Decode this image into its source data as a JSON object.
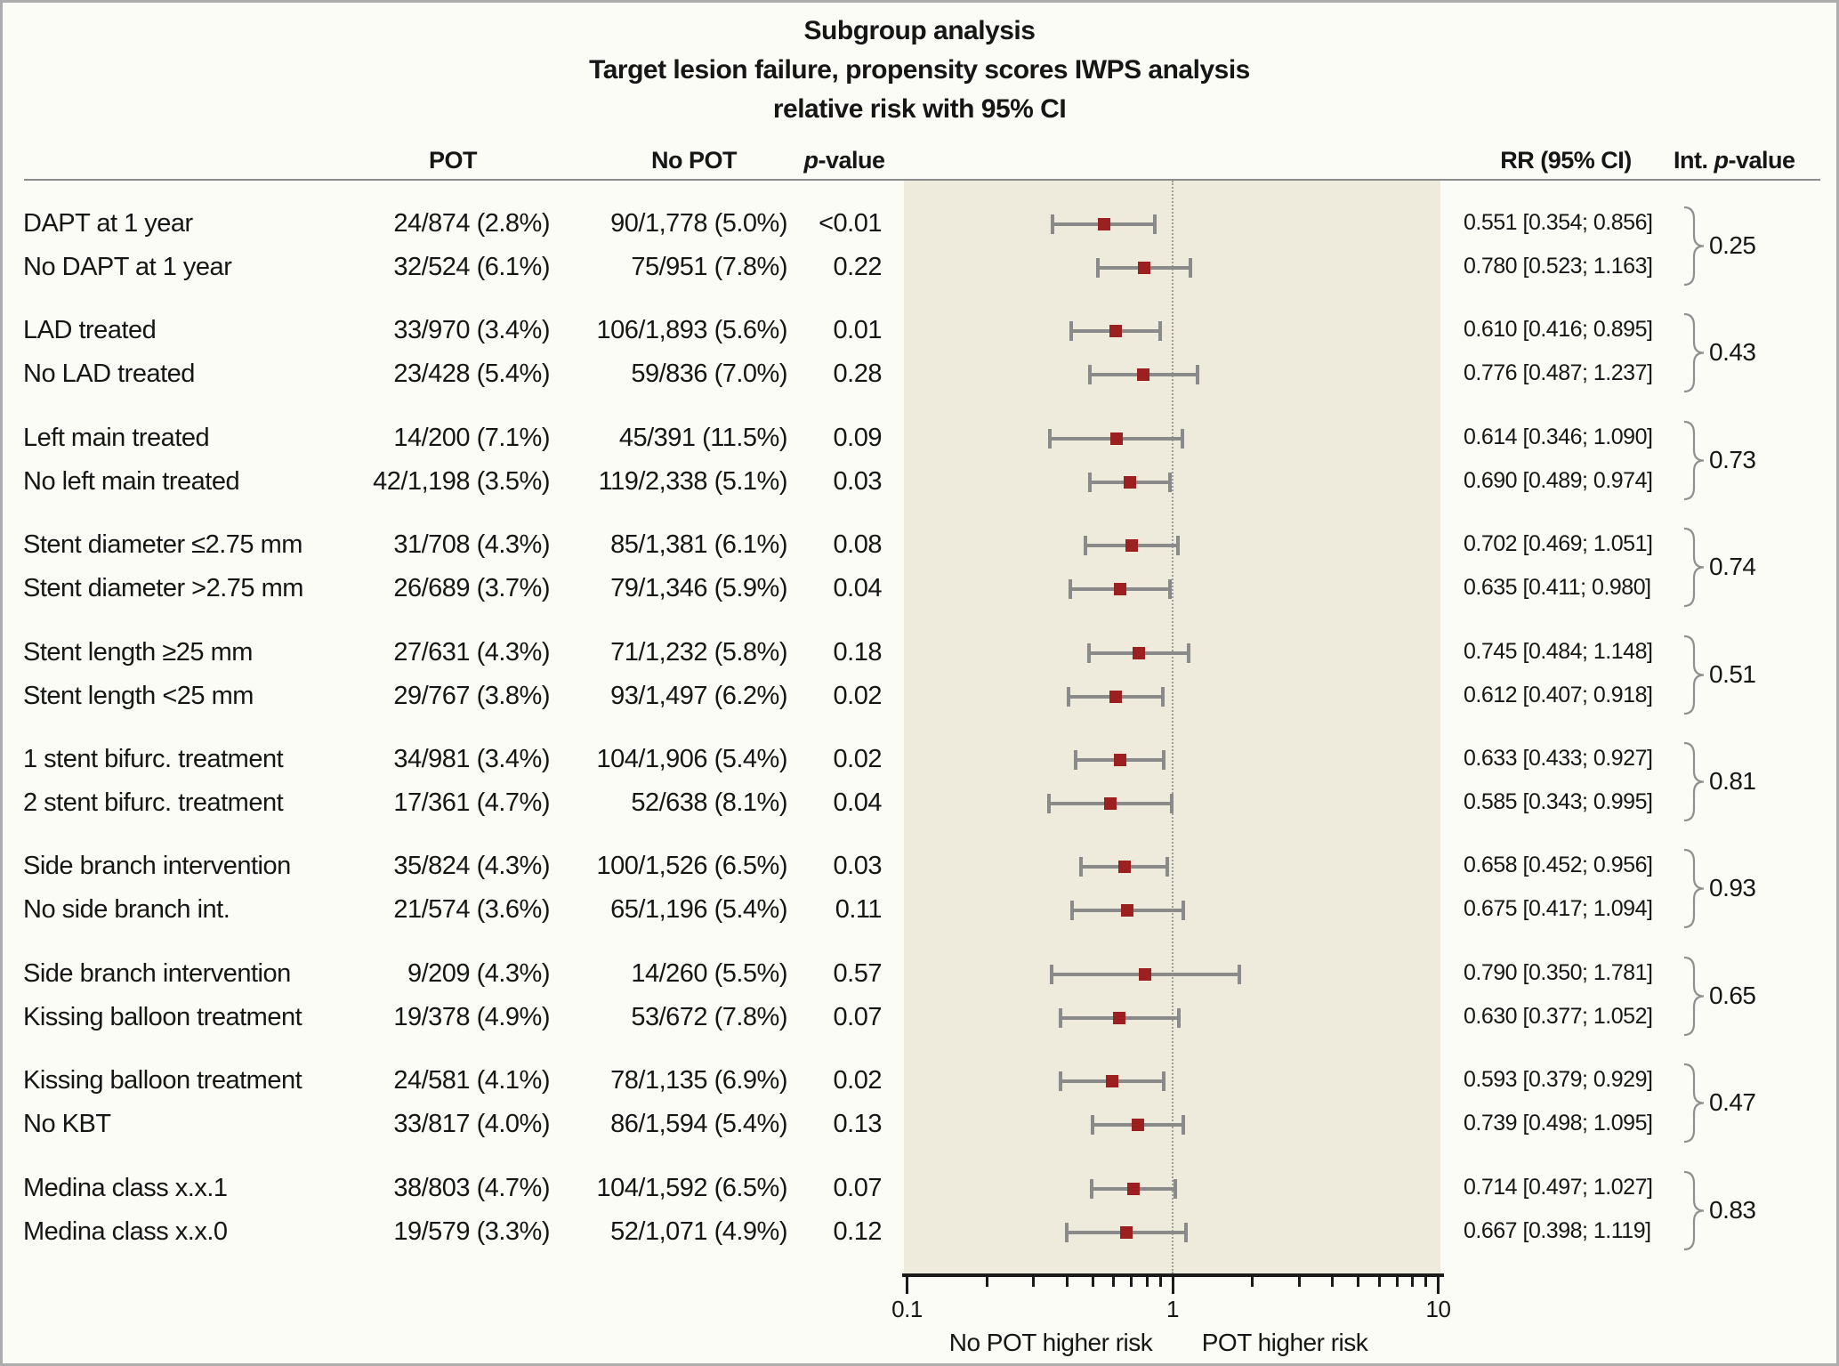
{
  "title": {
    "lines": [
      "Subgroup analysis",
      "Target lesion failure, propensity scores IWPS analysis",
      "relative risk with 95% CI"
    ]
  },
  "columns": {
    "pot": "POT",
    "no_pot": "No POT",
    "p_italic": "p",
    "p_suffix": "-value",
    "rr": "RR (95% CI)",
    "int_prefix": "Int. ",
    "int_italic": "p",
    "int_suffix": "-value"
  },
  "colors": {
    "marker": "#9c2020",
    "error_bar": "#8a8a8a",
    "band": "#eeebdc",
    "axis": "#1b1b1b"
  },
  "chart_data": {
    "type": "forest",
    "x_scale": "log",
    "xlim": [
      0.1,
      10
    ],
    "x_axis_ticks": [
      "0.1",
      "1",
      "10"
    ],
    "reference_line": 1,
    "footer_left": "No POT higher risk",
    "footer_right": "POT higher risk",
    "groups": [
      {
        "int_p": "0.25",
        "rows": [
          {
            "label": "DAPT at 1 year",
            "pot": "24/874 (2.8%)",
            "no_pot": "90/1,778 (5.0%)",
            "p": "<0.01",
            "rr": 0.551,
            "ci_low": 0.354,
            "ci_high": 0.856,
            "rr_label": "0.551 [0.354; 0.856]"
          },
          {
            "label": "No DAPT at 1 year",
            "pot": "32/524 (6.1%)",
            "no_pot": "75/951 (7.8%)",
            "p": "0.22",
            "rr": 0.78,
            "ci_low": 0.523,
            "ci_high": 1.163,
            "rr_label": "0.780 [0.523; 1.163]"
          }
        ]
      },
      {
        "int_p": "0.43",
        "rows": [
          {
            "label": "LAD treated",
            "pot": "33/970 (3.4%)",
            "no_pot": "106/1,893 (5.6%)",
            "p": "0.01",
            "rr": 0.61,
            "ci_low": 0.416,
            "ci_high": 0.895,
            "rr_label": "0.610 [0.416; 0.895]"
          },
          {
            "label": "No LAD treated",
            "pot": "23/428 (5.4%)",
            "no_pot": "59/836 (7.0%)",
            "p": "0.28",
            "rr": 0.776,
            "ci_low": 0.487,
            "ci_high": 1.237,
            "rr_label": "0.776 [0.487; 1.237]"
          }
        ]
      },
      {
        "int_p": "0.73",
        "rows": [
          {
            "label": "Left main treated",
            "pot": "14/200 (7.1%)",
            "no_pot": "45/391 (11.5%)",
            "p": "0.09",
            "rr": 0.614,
            "ci_low": 0.346,
            "ci_high": 1.09,
            "rr_label": "0.614 [0.346; 1.090]"
          },
          {
            "label": "No left main treated",
            "pot": "42/1,198 (3.5%)",
            "no_pot": "119/2,338 (5.1%)",
            "p": "0.03",
            "rr": 0.69,
            "ci_low": 0.489,
            "ci_high": 0.974,
            "rr_label": "0.690 [0.489; 0.974]"
          }
        ]
      },
      {
        "int_p": "0.74",
        "rows": [
          {
            "label": "Stent diameter ≤2.75 mm",
            "pot": "31/708 (4.3%)",
            "no_pot": "85/1,381 (6.1%)",
            "p": "0.08",
            "rr": 0.702,
            "ci_low": 0.469,
            "ci_high": 1.051,
            "rr_label": "0.702 [0.469; 1.051]"
          },
          {
            "label": "Stent diameter >2.75 mm",
            "pot": "26/689 (3.7%)",
            "no_pot": "79/1,346 (5.9%)",
            "p": "0.04",
            "rr": 0.635,
            "ci_low": 0.411,
            "ci_high": 0.98,
            "rr_label": "0.635 [0.411; 0.980]"
          }
        ]
      },
      {
        "int_p": "0.51",
        "rows": [
          {
            "label": "Stent length ≥25 mm",
            "pot": "27/631 (4.3%)",
            "no_pot": "71/1,232 (5.8%)",
            "p": "0.18",
            "rr": 0.745,
            "ci_low": 0.484,
            "ci_high": 1.148,
            "rr_label": "0.745 [0.484; 1.148]"
          },
          {
            "label": "Stent length <25 mm",
            "pot": "29/767 (3.8%)",
            "no_pot": "93/1,497 (6.2%)",
            "p": "0.02",
            "rr": 0.612,
            "ci_low": 0.407,
            "ci_high": 0.918,
            "rr_label": "0.612 [0.407; 0.918]"
          }
        ]
      },
      {
        "int_p": "0.81",
        "rows": [
          {
            "label": "1 stent bifurc. treatment",
            "pot": "34/981 (3.4%)",
            "no_pot": "104/1,906 (5.4%)",
            "p": "0.02",
            "rr": 0.633,
            "ci_low": 0.433,
            "ci_high": 0.927,
            "rr_label": "0.633 [0.433; 0.927]"
          },
          {
            "label": "2 stent bifurc. treatment",
            "pot": "17/361 (4.7%)",
            "no_pot": "52/638 (8.1%)",
            "p": "0.04",
            "rr": 0.585,
            "ci_low": 0.343,
            "ci_high": 0.995,
            "rr_label": "0.585 [0.343; 0.995]"
          }
        ]
      },
      {
        "int_p": "0.93",
        "rows": [
          {
            "label": "Side branch intervention",
            "pot": "35/824 (4.3%)",
            "no_pot": "100/1,526 (6.5%)",
            "p": "0.03",
            "rr": 0.658,
            "ci_low": 0.452,
            "ci_high": 0.956,
            "rr_label": "0.658 [0.452; 0.956]"
          },
          {
            "label": "No side branch int.",
            "pot": "21/574 (3.6%)",
            "no_pot": "65/1,196 (5.4%)",
            "p": "0.11",
            "rr": 0.675,
            "ci_low": 0.417,
            "ci_high": 1.094,
            "rr_label": "0.675 [0.417; 1.094]"
          }
        ]
      },
      {
        "int_p": "0.65",
        "rows": [
          {
            "label": "Side branch intervention",
            "pot": "9/209 (4.3%)",
            "no_pot": "14/260 (5.5%)",
            "p": "0.57",
            "rr": 0.79,
            "ci_low": 0.35,
            "ci_high": 1.781,
            "rr_label": "0.790 [0.350; 1.781]"
          },
          {
            "label": "Kissing balloon treatment",
            "pot": "19/378 (4.9%)",
            "no_pot": "53/672 (7.8%)",
            "p": "0.07",
            "rr": 0.63,
            "ci_low": 0.377,
            "ci_high": 1.052,
            "rr_label": "0.630 [0.377; 1.052]"
          }
        ]
      },
      {
        "int_p": "0.47",
        "rows": [
          {
            "label": "Kissing balloon treatment",
            "pot": "24/581 (4.1%)",
            "no_pot": "78/1,135 (6.9%)",
            "p": "0.02",
            "rr": 0.593,
            "ci_low": 0.379,
            "ci_high": 0.929,
            "rr_label": "0.593 [0.379; 0.929]"
          },
          {
            "label": "No KBT",
            "pot": "33/817 (4.0%)",
            "no_pot": "86/1,594 (5.4%)",
            "p": "0.13",
            "rr": 0.739,
            "ci_low": 0.498,
            "ci_high": 1.095,
            "rr_label": "0.739 [0.498; 1.095]"
          }
        ]
      },
      {
        "int_p": "0.83",
        "rows": [
          {
            "label": "Medina class x.x.1",
            "pot": "38/803 (4.7%)",
            "no_pot": "104/1,592 (6.5%)",
            "p": "0.07",
            "rr": 0.714,
            "ci_low": 0.497,
            "ci_high": 1.027,
            "rr_label": "0.714 [0.497; 1.027]"
          },
          {
            "label": "Medina class x.x.0",
            "pot": "19/579 (3.3%)",
            "no_pot": "52/1,071 (4.9%)",
            "p": "0.12",
            "rr": 0.667,
            "ci_low": 0.398,
            "ci_high": 1.119,
            "rr_label": "0.667 [0.398; 1.119]"
          }
        ]
      }
    ]
  }
}
